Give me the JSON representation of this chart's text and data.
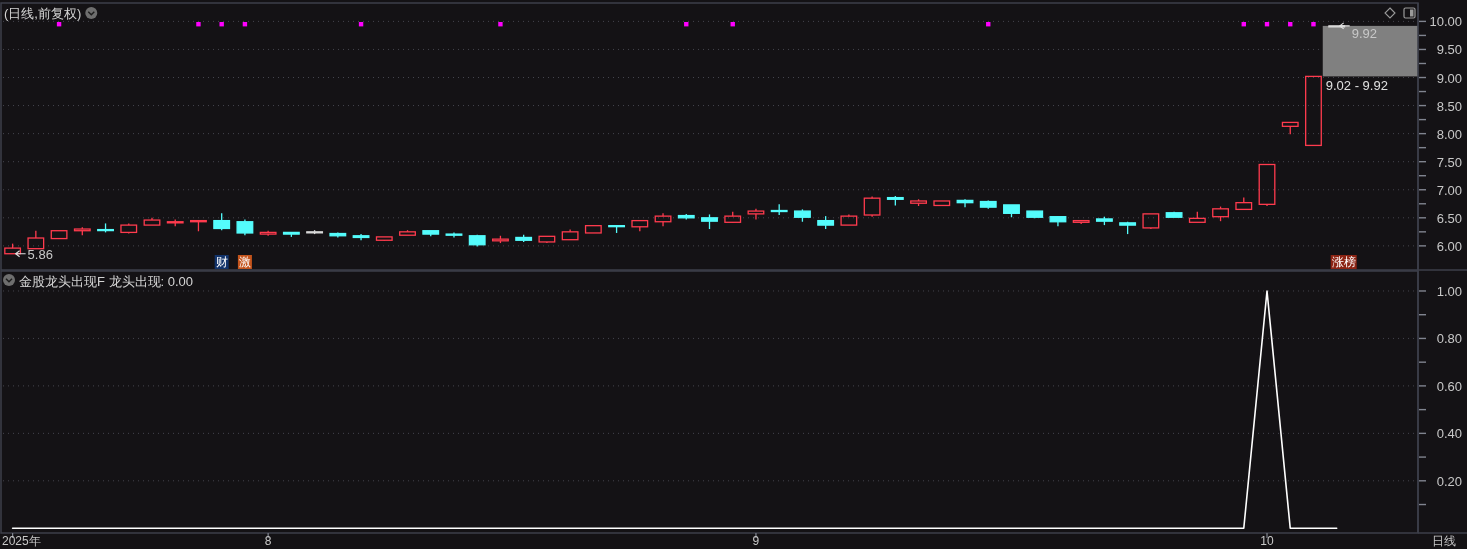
{
  "chart_data": [
    {
      "type": "candlestick",
      "title": "(日线,前复权)",
      "categories": [
        null,
        null,
        null,
        null,
        null,
        null,
        null,
        null,
        null,
        null,
        null,
        null,
        null,
        null,
        null,
        null,
        null,
        null,
        null,
        null,
        null,
        null,
        null,
        null,
        null,
        null,
        null,
        null,
        null,
        null,
        null,
        null,
        null,
        null,
        null,
        null,
        null,
        null,
        null,
        null,
        null,
        null,
        null,
        null,
        null,
        null,
        null,
        null,
        null,
        null,
        null,
        null,
        null,
        null,
        null,
        null,
        null,
        null,
        null,
        null,
        null
      ],
      "ohlc": [
        [
          5.86,
          6.04,
          5.86,
          5.96
        ],
        [
          5.95,
          6.27,
          5.95,
          6.14
        ],
        [
          6.13,
          6.27,
          6.13,
          6.27
        ],
        [
          6.27,
          6.33,
          6.19,
          6.3
        ],
        [
          6.29,
          6.4,
          6.24,
          6.28
        ],
        [
          6.24,
          6.4,
          6.22,
          6.37
        ],
        [
          6.37,
          6.5,
          6.37,
          6.46
        ],
        [
          6.41,
          6.47,
          6.35,
          6.43
        ],
        [
          6.43,
          6.45,
          6.26,
          6.45
        ],
        [
          6.45,
          6.58,
          6.28,
          6.31
        ],
        [
          6.43,
          6.47,
          6.19,
          6.23
        ],
        [
          6.21,
          6.27,
          6.18,
          6.24
        ],
        [
          6.24,
          6.24,
          6.16,
          6.21
        ],
        [
          6.25,
          6.28,
          6.21,
          6.25
        ],
        [
          6.22,
          6.24,
          6.15,
          6.18
        ],
        [
          6.18,
          6.21,
          6.1,
          6.15
        ],
        [
          6.1,
          6.16,
          6.09,
          6.16
        ],
        [
          6.19,
          6.28,
          6.19,
          6.25
        ],
        [
          6.27,
          6.27,
          6.17,
          6.21
        ],
        [
          6.21,
          6.24,
          6.15,
          6.19
        ],
        [
          6.18,
          6.2,
          5.99,
          6.02
        ],
        [
          6.09,
          6.18,
          6.05,
          6.12
        ],
        [
          6.15,
          6.2,
          6.07,
          6.1
        ],
        [
          6.07,
          6.17,
          6.05,
          6.17
        ],
        [
          6.11,
          6.29,
          6.11,
          6.25
        ],
        [
          6.23,
          6.36,
          6.23,
          6.36
        ],
        [
          6.36,
          6.36,
          6.23,
          6.35
        ],
        [
          6.34,
          6.45,
          6.26,
          6.45
        ],
        [
          6.43,
          6.58,
          6.35,
          6.53
        ],
        [
          6.54,
          6.57,
          6.47,
          6.5
        ],
        [
          6.5,
          6.56,
          6.3,
          6.44
        ],
        [
          6.42,
          6.61,
          6.41,
          6.53
        ],
        [
          6.57,
          6.66,
          6.47,
          6.62
        ],
        [
          6.63,
          6.74,
          6.55,
          6.62
        ],
        [
          6.62,
          6.65,
          6.43,
          6.51
        ],
        [
          6.45,
          6.53,
          6.3,
          6.37
        ],
        [
          6.37,
          6.56,
          6.37,
          6.53
        ],
        [
          6.55,
          6.88,
          6.52,
          6.85
        ],
        [
          6.86,
          6.89,
          6.72,
          6.83
        ],
        [
          6.76,
          6.83,
          6.71,
          6.8
        ],
        [
          6.72,
          6.8,
          6.71,
          6.8
        ],
        [
          6.81,
          6.83,
          6.69,
          6.77
        ],
        [
          6.79,
          6.81,
          6.66,
          6.69
        ],
        [
          6.73,
          6.73,
          6.51,
          6.58
        ],
        [
          6.62,
          6.62,
          6.49,
          6.51
        ],
        [
          6.52,
          6.53,
          6.35,
          6.43
        ],
        [
          6.42,
          6.45,
          6.39,
          6.45
        ],
        [
          6.48,
          6.52,
          6.37,
          6.44
        ],
        [
          6.41,
          6.43,
          6.21,
          6.37
        ],
        [
          6.32,
          6.57,
          6.3,
          6.57
        ],
        [
          6.59,
          6.61,
          6.51,
          6.51
        ],
        [
          6.42,
          6.61,
          6.42,
          6.49
        ],
        [
          6.52,
          6.7,
          6.44,
          6.66
        ],
        [
          6.65,
          6.86,
          6.64,
          6.77
        ],
        [
          6.74,
          7.45,
          6.71,
          7.45
        ],
        [
          8.13,
          8.2,
          7.99,
          8.2
        ],
        [
          7.79,
          9.02,
          7.79,
          9.02
        ],
        [
          9.92,
          9.92,
          9.92,
          9.92
        ],
        null,
        null,
        null
      ],
      "colors": [
        "#ff3b4e",
        "#ff3b4e",
        "#ff3b4e",
        "#ff3b4e",
        "#54fcfc",
        "#ff3b4e",
        "#ff3b4e",
        "#ff3b4e",
        "#ff3b4e",
        "#54fcfc",
        "#54fcfc",
        "#ff3b4e",
        "#54fcfc",
        "#d8d8d8",
        "#54fcfc",
        "#54fcfc",
        "#ff3b4e",
        "#ff3b4e",
        "#54fcfc",
        "#54fcfc",
        "#54fcfc",
        "#ff3b4e",
        "#54fcfc",
        "#ff3b4e",
        "#ff3b4e",
        "#ff3b4e",
        "#54fcfc",
        "#ff3b4e",
        "#ff3b4e",
        "#54fcfc",
        "#54fcfc",
        "#ff3b4e",
        "#ff3b4e",
        "#54fcfc",
        "#54fcfc",
        "#54fcfc",
        "#ff3b4e",
        "#ff3b4e",
        "#54fcfc",
        "#ff3b4e",
        "#ff3b4e",
        "#54fcfc",
        "#54fcfc",
        "#54fcfc",
        "#54fcfc",
        "#54fcfc",
        "#ff3b4e",
        "#54fcfc",
        "#54fcfc",
        "#ff3b4e",
        "#54fcfc",
        "#ff3b4e",
        "#ff3b4e",
        "#ff3b4e",
        "#ff3b4e",
        "#ff3b4e",
        "#ff3b4e",
        "#d8d8d8",
        null,
        null,
        null
      ],
      "series": [
        {
          "type": "scatter",
          "color": "#ff00ff",
          "values": [
            null,
            null,
            9.95,
            null,
            null,
            null,
            null,
            null,
            9.95,
            9.95,
            9.95,
            null,
            null,
            null,
            null,
            9.95,
            null,
            null,
            null,
            null,
            null,
            9.95,
            null,
            null,
            null,
            null,
            null,
            null,
            null,
            9.95,
            null,
            9.95,
            null,
            null,
            null,
            null,
            null,
            null,
            null,
            null,
            null,
            null,
            9.95,
            null,
            null,
            null,
            null,
            null,
            null,
            null,
            null,
            null,
            null,
            9.95,
            9.95,
            9.95,
            9.95,
            null,
            null,
            null,
            null
          ]
        }
      ],
      "marker": "square",
      "ylim": [
        5.57,
        10.31
      ],
      "yticks": [
        {
          "value": 6.0,
          "label": "6.00"
        },
        {
          "value": 6.25,
          "label": null
        },
        {
          "value": 6.5,
          "label": "6.50"
        },
        {
          "value": 6.75,
          "label": null
        },
        {
          "value": 7.0,
          "label": "7.00"
        },
        {
          "value": 7.25,
          "label": null
        },
        {
          "value": 7.5,
          "label": "7.50"
        },
        {
          "value": 7.75,
          "label": null
        },
        {
          "value": 8.0,
          "label": "8.00"
        },
        {
          "value": 8.25,
          "label": null
        },
        {
          "value": 8.5,
          "label": "8.50"
        },
        {
          "value": 8.75,
          "label": null
        },
        {
          "value": 9.0,
          "label": "9.00"
        },
        {
          "value": 9.25,
          "label": null
        },
        {
          "value": 9.5,
          "label": "9.50"
        },
        {
          "value": 9.75,
          "label": null
        },
        {
          "value": 10.0,
          "label": "10.00"
        }
      ],
      "grid": "y",
      "tick_labels": "y",
      "bands": [
        {
          "axis": "y",
          "from": 9.02,
          "to": 9.92,
          "label": "9.02 - 9.92",
          "color": "#808080"
        }
      ],
      "annotations": [
        "财",
        "激",
        "涨榜",
        "5.86",
        {
          "text": "9.92",
          "y": 9.92
        }
      ]
    },
    {
      "type": "line",
      "title": "金股龙头出现F 龙头出现: 0.00",
      "categories": [
        "2025年",
        null,
        null,
        null,
        null,
        null,
        null,
        null,
        null,
        null,
        null,
        "8",
        null,
        null,
        null,
        null,
        null,
        null,
        null,
        null,
        null,
        null,
        null,
        null,
        null,
        null,
        null,
        null,
        null,
        null,
        null,
        null,
        "9",
        null,
        null,
        null,
        null,
        null,
        null,
        null,
        null,
        null,
        null,
        null,
        null,
        null,
        null,
        null,
        null,
        null,
        null,
        null,
        null,
        null,
        "10",
        null,
        null,
        null,
        null,
        null,
        null
      ],
      "series": [
        {
          "color": "#ffffff",
          "values": [
            0,
            0,
            0,
            0,
            0,
            0,
            0,
            0,
            0,
            0,
            0,
            0,
            0,
            0,
            0,
            0,
            0,
            0,
            0,
            0,
            0,
            0,
            0,
            0,
            0,
            0,
            0,
            0,
            0,
            0,
            0,
            0,
            0,
            0,
            0,
            0,
            0,
            0,
            0,
            0,
            0,
            0,
            0,
            0,
            0,
            0,
            0,
            0,
            0,
            0,
            0,
            0,
            0,
            0,
            1,
            0,
            0,
            0,
            null,
            null,
            null
          ]
        }
      ],
      "ylim": [
        -0.02,
        1.08
      ],
      "yticks": [
        {
          "value": 0.1,
          "label": null
        },
        {
          "value": 0.2,
          "label": "0.20"
        },
        {
          "value": 0.3,
          "label": null
        },
        {
          "value": 0.4,
          "label": "0.40"
        },
        {
          "value": 0.5,
          "label": null
        },
        {
          "value": 0.6,
          "label": "0.60"
        },
        {
          "value": 0.7,
          "label": null
        },
        {
          "value": 0.8,
          "label": "0.80"
        },
        {
          "value": 0.9,
          "label": null
        },
        {
          "value": 1.0,
          "label": "1.00"
        }
      ],
      "grid": "y",
      "annotations": [
        "日线"
      ]
    }
  ]
}
